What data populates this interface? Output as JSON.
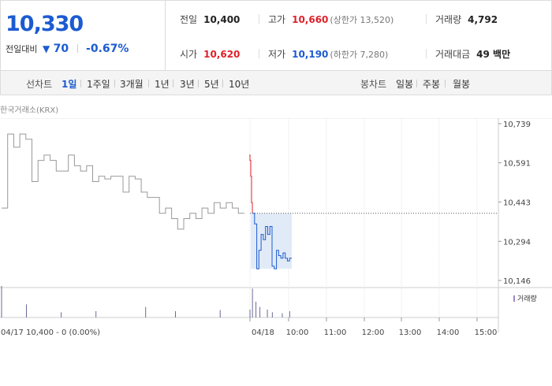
{
  "summary": {
    "price": "10,330",
    "change_label": "전일대비",
    "change_icon": "down-triangle-icon",
    "change_glyph": "▼",
    "change_value": "70",
    "change_pct": "-0.67%",
    "stats": {
      "prev_close": {
        "label": "전일",
        "value": "10,400"
      },
      "high": {
        "label": "고가",
        "value": "10,660",
        "sub": "(상한가 13,520)"
      },
      "volume": {
        "label": "거래량",
        "value": "4,792"
      },
      "open": {
        "label": "시가",
        "value": "10,620"
      },
      "low": {
        "label": "저가",
        "value": "10,190",
        "sub": "(하한가 7,280)"
      },
      "amount": {
        "label": "거래대금",
        "value": "49 백만"
      }
    }
  },
  "tabs": {
    "line_chart_label": "선차트",
    "periods": [
      "1일",
      "1주일",
      "3개월",
      "1년",
      "3년",
      "5년",
      "10년"
    ],
    "active_period": "1일",
    "candle_chart_label": "봉차트",
    "candles": [
      "일봉",
      "주봉",
      "월봉"
    ]
  },
  "chart": {
    "source": "한국거래소(KRX)",
    "legend": "거래량",
    "footer_note": "04/17 10,400 - 0 (0.00%)",
    "colors": {
      "up": "#e0202a",
      "down": "#1c5bd1",
      "prev": "#999999",
      "highlight": "#dce8f7"
    }
  },
  "chart_data": {
    "type": "line",
    "y_ticks": [
      "10,739",
      "10,591",
      "10,443",
      "10,294",
      "10,146"
    ],
    "ylim": [
      10146,
      10739
    ],
    "x_tick_labels": [
      "04/18",
      "10:00",
      "11:00",
      "12:00",
      "13:00",
      "14:00",
      "15:00"
    ],
    "reference_price": 10400,
    "series": [
      {
        "name": "04/17",
        "values": [
          10420,
          10700,
          10650,
          10700,
          10680,
          10520,
          10600,
          10620,
          10600,
          10560,
          10560,
          10620,
          10580,
          10560,
          10580,
          10520,
          10540,
          10530,
          10540,
          10540,
          10480,
          10540,
          10530,
          10480,
          10460,
          10460,
          10400,
          10420,
          10380,
          10340,
          10380,
          10400,
          10380,
          10420,
          10400,
          10440,
          10420,
          10440,
          10420,
          10400,
          10400
        ]
      },
      {
        "name": "04/18 up",
        "values": [
          10620,
          10600,
          10540,
          10440,
          10400
        ]
      },
      {
        "name": "04/18",
        "values": [
          10400,
          10360,
          10190,
          10260,
          10320,
          10300,
          10350,
          10320,
          10350,
          10200,
          10190,
          10260,
          10240,
          10230,
          10250,
          10230,
          10220,
          10230,
          10230
        ]
      }
    ],
    "volume": [
      {
        "x": 0,
        "v": 60
      },
      {
        "x": 0.05,
        "v": 25
      },
      {
        "x": 0.12,
        "v": 10
      },
      {
        "x": 0.19,
        "v": 12
      },
      {
        "x": 0.29,
        "v": 20
      },
      {
        "x": 0.35,
        "v": 12
      },
      {
        "x": 0.44,
        "v": 14
      },
      {
        "x": 0.5,
        "v": 15
      },
      {
        "x": 0.505,
        "v": 55
      },
      {
        "x": 0.512,
        "v": 30
      },
      {
        "x": 0.52,
        "v": 20
      },
      {
        "x": 0.535,
        "v": 15
      },
      {
        "x": 0.545,
        "v": 10
      },
      {
        "x": 0.565,
        "v": 8
      },
      {
        "x": 0.58,
        "v": 12
      }
    ]
  }
}
